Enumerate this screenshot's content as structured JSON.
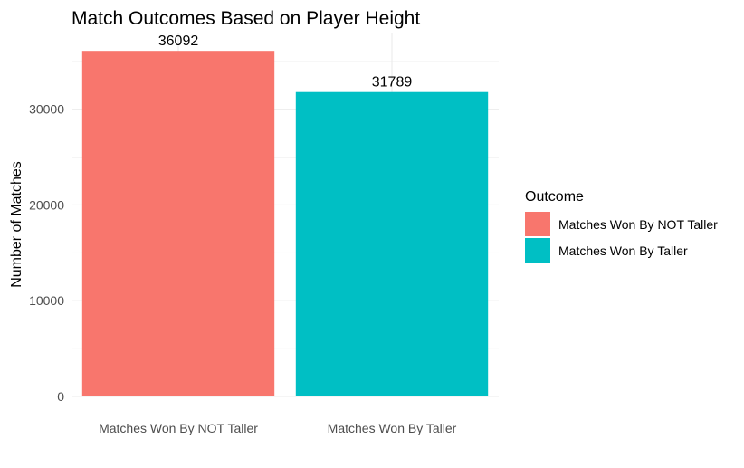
{
  "chart_data": {
    "type": "bar",
    "title": "Match Outcomes Based on Player Height",
    "xlabel": "",
    "ylabel": "Number of Matches",
    "categories": [
      "Matches Won By NOT Taller",
      "Matches Won By Taller"
    ],
    "values": [
      36092,
      31789
    ],
    "data_labels": [
      "36092",
      "31789"
    ],
    "colors": [
      "#F8766D",
      "#00BFC4"
    ],
    "ylim": [
      0,
      38000
    ],
    "y_ticks": [
      0,
      10000,
      20000,
      30000
    ],
    "y_tick_labels": [
      "0",
      "10000",
      "20000",
      "30000"
    ],
    "grid": true,
    "legend": {
      "title": "Outcome",
      "position": "right",
      "entries": [
        "Matches Won By NOT Taller",
        "Matches Won By Taller"
      ]
    }
  }
}
